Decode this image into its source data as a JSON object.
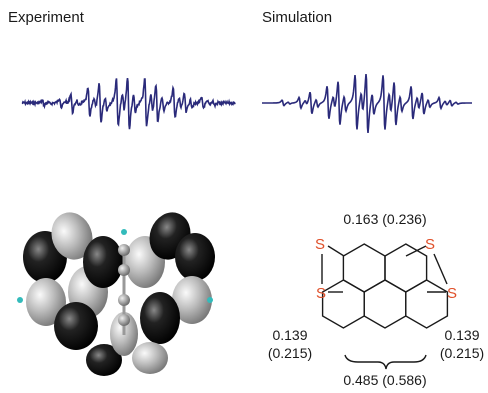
{
  "panels": {
    "experiment": {
      "label": "Experiment"
    },
    "simulation": {
      "label": "Simulation"
    },
    "molecule": {
      "atoms": [
        "S",
        "S",
        "S",
        "S"
      ],
      "couplings": {
        "top": "0.163 (0.236)",
        "left": [
          "0.139",
          "(0.215)"
        ],
        "right": [
          "0.139",
          "(0.215)"
        ],
        "bottom": "0.485 (0.586)"
      }
    }
  }
}
